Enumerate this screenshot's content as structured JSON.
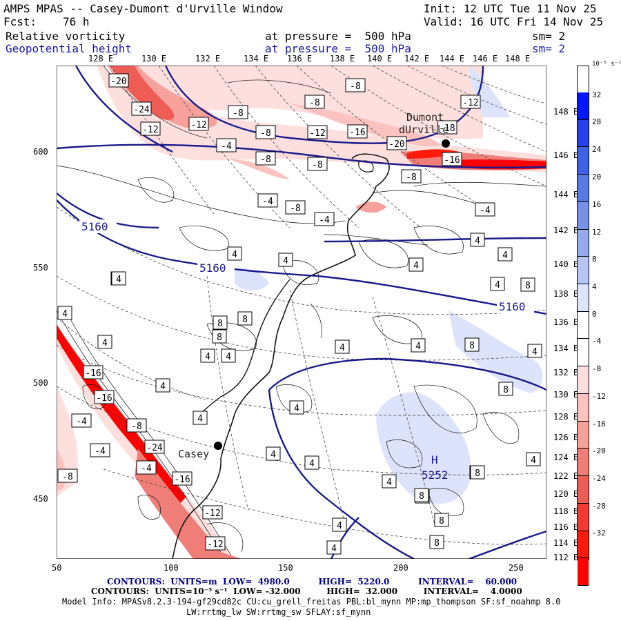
{
  "header": {
    "title": "AMPS MPAS -- Casey-Dumont d'Urville Window",
    "init": "Init: 12 UTC Tue 11 Nov 25",
    "fcst_label": "Fcst:",
    "fcst_value": "76 h",
    "valid": "Valid: 16 UTC Fri 14 Nov 25",
    "field1_name": "Relative vorticity",
    "field1_level": "at pressure =  500 hPa",
    "field1_sm": "sm= 2",
    "field2_name": "Geopotential height",
    "field2_level": "at pressure =  500 hPa",
    "field2_sm": "sm= 2"
  },
  "top_lon_labels": [
    "128 E",
    "130 E",
    "132 E",
    "134 E",
    "136 E",
    "138 E",
    "140 E",
    "142 E",
    "144 E",
    "146 E",
    "148 E"
  ],
  "right_lon_labels": [
    "148 E",
    "146 E",
    "144 E",
    "142 E",
    "140 E",
    "138 E",
    "136 E",
    "134 E",
    "132 E",
    "130 E",
    "128 E",
    "126 E",
    "124 E",
    "122 E",
    "120 E",
    "118 E",
    "116 E",
    "114 E",
    "112 E"
  ],
  "left_axis_labels": [
    "600",
    "550",
    "500",
    "450"
  ],
  "bottom_axis_labels": [
    "50",
    "100",
    "150",
    "200",
    "250"
  ],
  "colorbar": {
    "units": "10⁻⁵ s⁻¹",
    "ticks": [
      "32",
      "28",
      "24",
      "20",
      "16",
      "12",
      "8",
      "4",
      "0",
      "-4",
      "-8",
      "-12",
      "-16",
      "-20",
      "-24",
      "-28",
      "-32"
    ],
    "colors_top_to_bottom": [
      "#0018ff",
      "#2440f0",
      "#4060e6",
      "#5a78e6",
      "#7890e8",
      "#98aaee",
      "#b8c4f4",
      "#dde3fb",
      "#ffffff",
      "#ffffff",
      "#fde0de",
      "#fac3bf",
      "#f6a19b",
      "#f07e78",
      "#ee5c56",
      "#f23a30",
      "#ff1a0e",
      "#ff0000"
    ]
  },
  "stations": [
    {
      "name": "Dumont"
    },
    {
      "name": "dUrville"
    },
    {
      "name": "Casey"
    }
  ],
  "height_labels": [
    "5160",
    "5160",
    "5160"
  ],
  "high_label": {
    "letter": "H",
    "value": "5252"
  },
  "vort_labels": [
    "-20",
    "-24",
    "-12",
    "-12",
    "-8",
    "-4",
    "-8",
    "-8",
    "-8",
    "-12",
    "-16",
    "-20",
    "-8",
    "-12",
    "-18",
    "-16",
    "-8",
    "-8",
    "-4",
    "-8",
    "-4",
    "-4",
    "4",
    "4",
    "4",
    "4",
    "4",
    "4",
    "8",
    "8",
    "4",
    "4",
    "4",
    "8",
    "4",
    "8",
    "4",
    "4",
    "4",
    "4",
    "4",
    "4",
    "4",
    "8",
    "-16",
    "-16",
    "-4",
    "-8",
    "-4",
    "-24",
    "-4",
    "-8",
    "-16",
    "-12",
    "-12",
    "4",
    "4",
    "8",
    "8",
    "4",
    "8",
    "4",
    "4",
    "4",
    "8",
    "8",
    "4",
    "8",
    "8",
    "8"
  ],
  "footer": {
    "line1": "CONTOURS:  UNITS=m  LOW=  4980.0          HIGH=  5220.0          INTERVAL=    60.000",
    "line2": "CONTOURS:  UNITS=10⁻⁵ s⁻¹  LOW= -32.000         HIGH=  32.000         INTERVAL=    4.0000",
    "model_info": "Model Info: MPASv8.2.3-194-gf29cd82c CU:cu_grell_freitas PBL:bl_mynn MP:mp_thompson SF:sf_noahmp 8.0",
    "line4": "LW:rrtmg_lw SW:rrtmg_sw SFLAY:sf_mynn"
  }
}
